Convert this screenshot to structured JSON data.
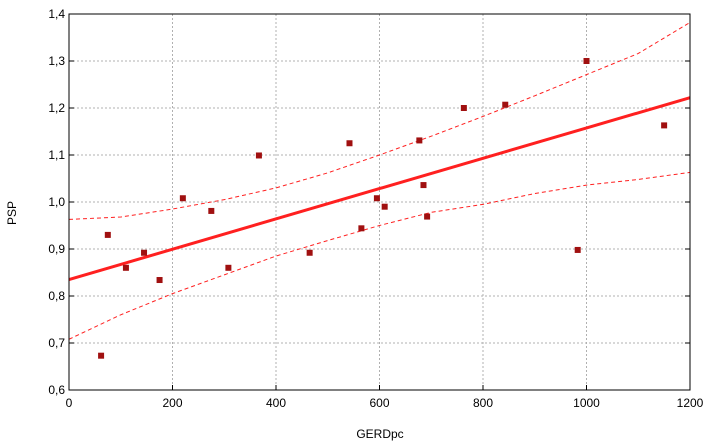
{
  "chart_data": {
    "type": "scatter",
    "title": "",
    "xlabel": "GERDpc",
    "ylabel": "PSP",
    "xlim": [
      0,
      1200
    ],
    "ylim": [
      0.6,
      1.4
    ],
    "x_ticks": [
      "0",
      "200",
      "400",
      "600",
      "800",
      "1000",
      "1200"
    ],
    "y_ticks": [
      "0,6",
      "0,7",
      "0,8",
      "0,9",
      "1,0",
      "1,1",
      "1,2",
      "1,3",
      "1,4"
    ],
    "grid": true,
    "colors": {
      "points": "#a01010",
      "fit": "#ff2020",
      "band": "#ff2020",
      "grid": "#b0b0b0",
      "title": "#1c2a9e"
    },
    "points": [
      {
        "x": 62,
        "y": 0.673
      },
      {
        "x": 75,
        "y": 0.93
      },
      {
        "x": 110,
        "y": 0.86
      },
      {
        "x": 145,
        "y": 0.892
      },
      {
        "x": 175,
        "y": 0.834
      },
      {
        "x": 220,
        "y": 1.008
      },
      {
        "x": 275,
        "y": 0.981
      },
      {
        "x": 308,
        "y": 0.86
      },
      {
        "x": 367,
        "y": 1.099
      },
      {
        "x": 465,
        "y": 0.892
      },
      {
        "x": 542,
        "y": 1.125
      },
      {
        "x": 565,
        "y": 0.944
      },
      {
        "x": 595,
        "y": 1.008
      },
      {
        "x": 610,
        "y": 0.99
      },
      {
        "x": 677,
        "y": 1.131
      },
      {
        "x": 685,
        "y": 1.036
      },
      {
        "x": 692,
        "y": 0.969
      },
      {
        "x": 763,
        "y": 1.2
      },
      {
        "x": 843,
        "y": 1.207
      },
      {
        "x": 983,
        "y": 0.898
      },
      {
        "x": 1000,
        "y": 1.3
      },
      {
        "x": 1150,
        "y": 1.163
      }
    ],
    "fit_line": {
      "x": [
        0,
        1200
      ],
      "y": [
        0.835,
        1.222
      ]
    },
    "confidence_upper": {
      "x": [
        0,
        100,
        200,
        300,
        400,
        500,
        600,
        700,
        800,
        900,
        1000,
        1100,
        1200
      ],
      "y": [
        0.963,
        0.968,
        0.985,
        1.005,
        1.03,
        1.062,
        1.1,
        1.14,
        1.182,
        1.226,
        1.271,
        1.316,
        1.382
      ]
    },
    "confidence_lower": {
      "x": [
        0,
        100,
        200,
        300,
        400,
        500,
        600,
        700,
        800,
        900,
        1000,
        1100,
        1200
      ],
      "y": [
        0.708,
        0.76,
        0.805,
        0.845,
        0.885,
        0.918,
        0.95,
        0.978,
        0.995,
        1.018,
        1.036,
        1.048,
        1.063
      ]
    }
  }
}
